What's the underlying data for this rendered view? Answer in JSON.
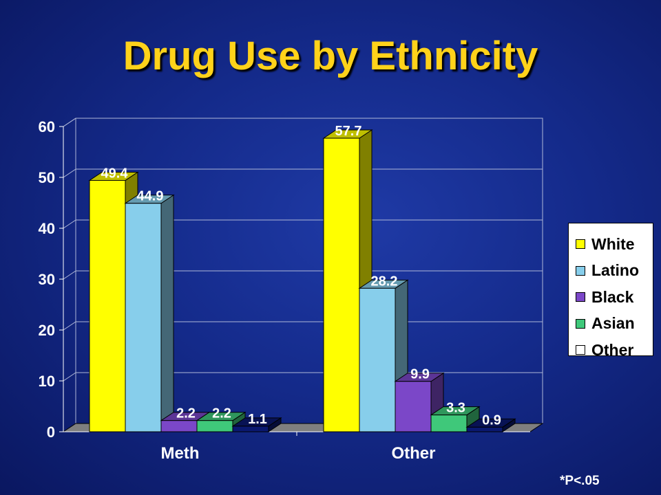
{
  "title": "Drug Use by Ethnicity",
  "footnote": "*P<.05",
  "colors": {
    "background": "#142a8a",
    "White": "#ffff00",
    "Latino": "#87ceeb",
    "Black": "#7b47c8",
    "Asian": "#3fc87a",
    "Other": "#0a1870"
  },
  "chart_data": {
    "type": "bar",
    "title": "Drug Use by Ethnicity",
    "categories": [
      "Meth",
      "Other"
    ],
    "series": [
      {
        "name": "White",
        "values": [
          49.4,
          57.7
        ]
      },
      {
        "name": "Latino",
        "values": [
          44.9,
          28.2
        ]
      },
      {
        "name": "Black",
        "values": [
          2.2,
          9.9
        ]
      },
      {
        "name": "Asian",
        "values": [
          2.2,
          3.3
        ]
      },
      {
        "name": "Other",
        "values": [
          1.1,
          0.9
        ]
      }
    ],
    "data_labels": [
      [
        "49.4",
        "44.9",
        "2.2",
        "2.2",
        "1.1"
      ],
      [
        "57.7",
        "28.2",
        "9.9",
        "3.3",
        "0.9"
      ]
    ],
    "yticks": [
      "0",
      "10",
      "20",
      "30",
      "40",
      "50",
      "60"
    ],
    "ylim": [
      0,
      60
    ],
    "xlabel": "",
    "ylabel": "",
    "grid": true,
    "legend": "right",
    "three_d": true
  }
}
